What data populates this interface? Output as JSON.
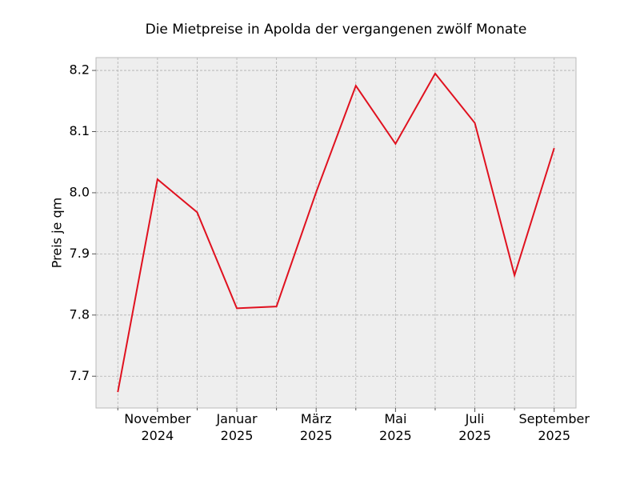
{
  "chart_data": {
    "type": "line",
    "title": "Die Mietpreise in Apolda der vergangenen zwölf Monate",
    "y_label": "Preis je qm",
    "categories": [
      null,
      "November\n2024",
      null,
      "Januar\n2025",
      null,
      "März\n2025",
      null,
      "Mai\n2025",
      null,
      "Juli\n2025",
      null,
      "September\n2025"
    ],
    "values": [
      7.674,
      8.022,
      7.968,
      7.811,
      7.814,
      8.001,
      8.175,
      8.08,
      8.195,
      8.114,
      7.865,
      8.073
    ],
    "color": "#e0111f",
    "ylim": [
      7.648,
      8.221
    ],
    "yticks": [
      7.7,
      7.8,
      7.9,
      {
        "value": 8,
        "label": "8.0"
      },
      8.1,
      8.2
    ],
    "grid": true
  }
}
